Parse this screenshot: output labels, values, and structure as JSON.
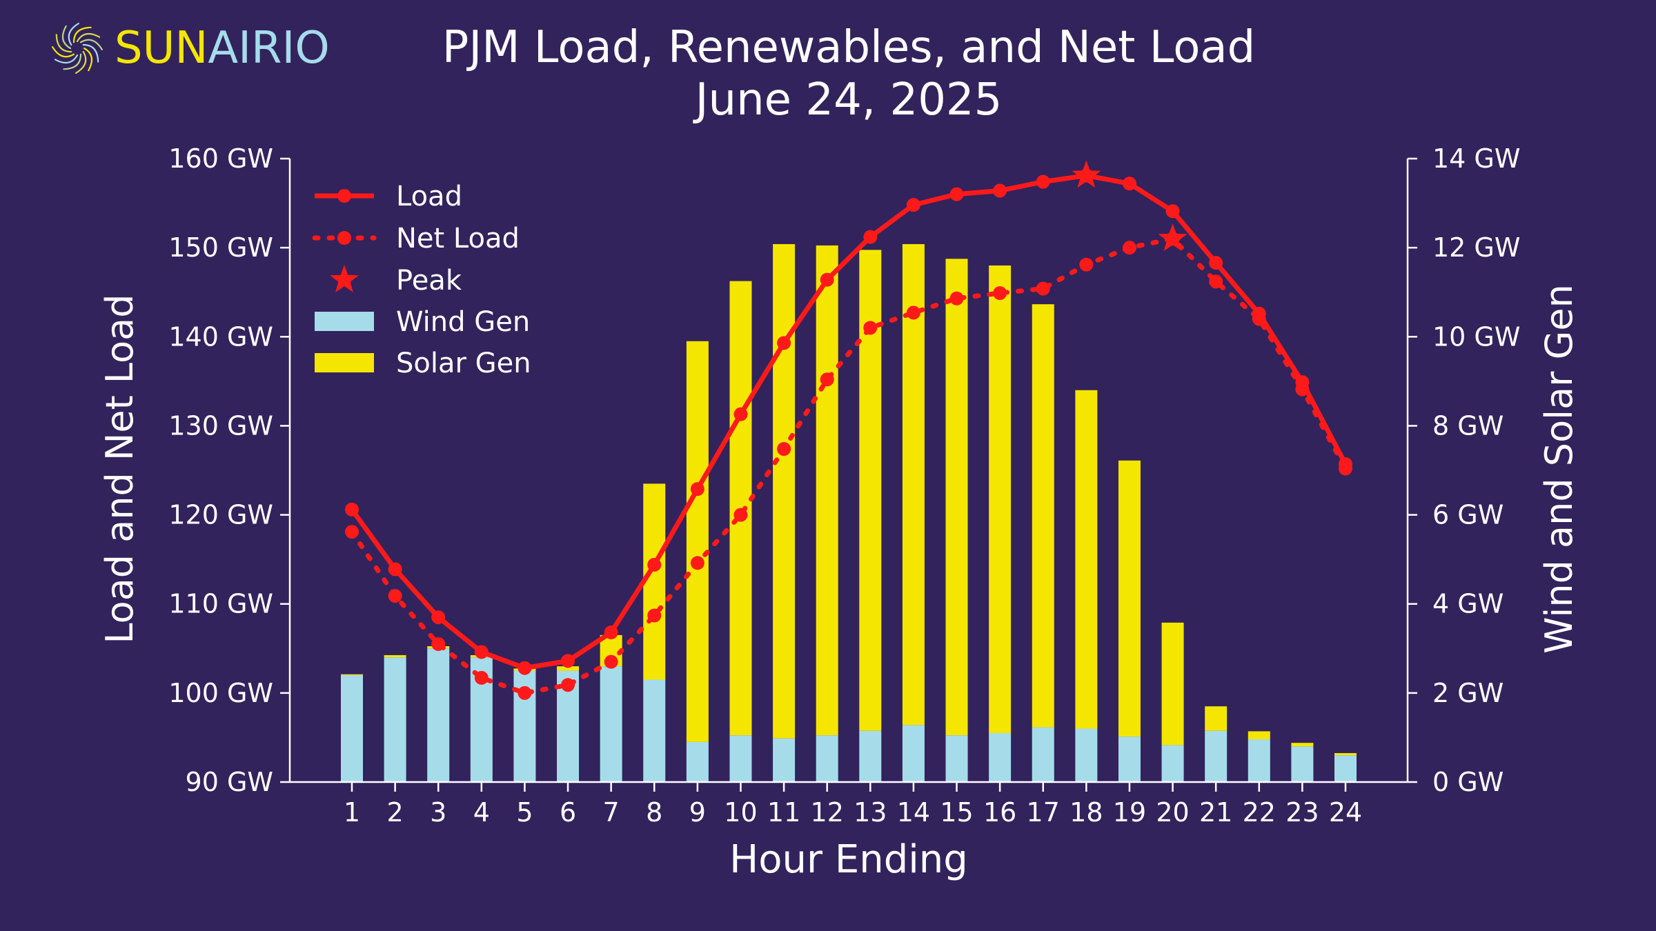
{
  "logo": {
    "text_part1": "SUN",
    "text_part2": "AIRIO",
    "icon": "swirl-icon"
  },
  "colors": {
    "background": "#32235c",
    "load": "#ff1a1a",
    "wind": "#a6dcea",
    "solar": "#f5e600",
    "text": "#ffffff",
    "logo_yellow": "#f5e600",
    "logo_teal": "#a6dcea"
  },
  "chart_data": {
    "type": "bar",
    "title": "PJM Load, Renewables, and Net Load",
    "subtitle": "June 24, 2025",
    "xlabel": "Hour Ending",
    "ylabel_left": "Load and Net Load",
    "ylabel_right": "Wind and Solar Gen",
    "x": [
      1,
      2,
      3,
      4,
      5,
      6,
      7,
      8,
      9,
      10,
      11,
      12,
      13,
      14,
      15,
      16,
      17,
      18,
      19,
      20,
      21,
      22,
      23,
      24
    ],
    "x_tick_labels": [
      "1",
      "2",
      "3",
      "4",
      "5",
      "6",
      "7",
      "8",
      "9",
      "10",
      "11",
      "12",
      "13",
      "14",
      "15",
      "16",
      "17",
      "18",
      "19",
      "20",
      "21",
      "22",
      "23",
      "24"
    ],
    "ylim_left": [
      90,
      160
    ],
    "ylim_right": [
      0,
      14
    ],
    "left_ticks": [
      "90 GW",
      "100 GW",
      "110 GW",
      "120 GW",
      "130 GW",
      "140 GW",
      "150 GW",
      "160 GW"
    ],
    "right_ticks": [
      "0 GW",
      "2 GW",
      "4 GW",
      "6 GW",
      "8 GW",
      "10 GW",
      "12 GW",
      "14 GW"
    ],
    "legend_position": "top-left",
    "legend": [
      "Load",
      "Net Load",
      "Peak",
      "Wind Gen",
      "Solar Gen"
    ],
    "series": [
      {
        "name": "Load",
        "axis": "left",
        "style": "solid-line-markers",
        "values": [
          120.6,
          113.9,
          108.5,
          104.6,
          102.8,
          103.6,
          106.8,
          114.4,
          122.9,
          131.3,
          139.3,
          146.4,
          151.2,
          154.8,
          156.0,
          156.4,
          157.4,
          158.1,
          157.2,
          154.1,
          148.3,
          142.6,
          134.9,
          125.7
        ]
      },
      {
        "name": "Net Load",
        "axis": "left",
        "style": "dotted-line-markers",
        "values": [
          118.1,
          110.9,
          105.5,
          101.7,
          100.0,
          100.9,
          103.5,
          108.7,
          114.6,
          120.0,
          127.4,
          135.2,
          141.0,
          142.7,
          144.3,
          144.9,
          145.4,
          148.1,
          150.0,
          151.0,
          146.2,
          142.0,
          134.1,
          125.2
        ]
      },
      {
        "name": "Wind Gen",
        "axis": "right",
        "style": "stacked-bar-bottom",
        "values": [
          2.4,
          2.8,
          3.0,
          2.8,
          2.5,
          2.5,
          2.6,
          2.3,
          0.9,
          1.05,
          0.98,
          1.05,
          1.15,
          1.28,
          1.05,
          1.1,
          1.23,
          1.2,
          1.02,
          0.83,
          1.15,
          0.96,
          0.8,
          0.6
        ]
      },
      {
        "name": "Solar Gen",
        "axis": "right",
        "style": "stacked-bar-top",
        "values": [
          0.02,
          0.05,
          0.05,
          0.05,
          0.05,
          0.1,
          0.7,
          4.4,
          9.0,
          10.2,
          11.1,
          11.0,
          10.8,
          10.8,
          10.7,
          10.5,
          9.5,
          7.6,
          6.2,
          2.75,
          0.55,
          0.18,
          0.08,
          0.05
        ]
      }
    ],
    "peaks": [
      {
        "series": "Load",
        "x": 18,
        "value": 158.1
      },
      {
        "series": "Net Load",
        "x": 20,
        "value": 151.0
      }
    ]
  }
}
